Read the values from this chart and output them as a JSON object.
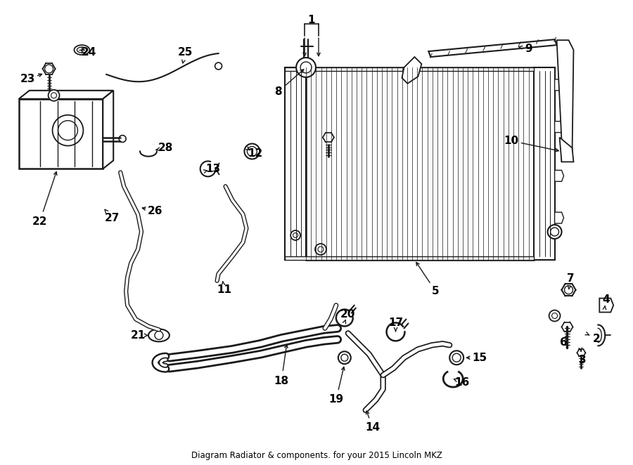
{
  "title": "Diagram Radiator & components. for your 2015 Lincoln MKZ",
  "bg_color": "#ffffff",
  "line_color": "#1a1a1a",
  "text_color": "#000000",
  "fig_width": 9.0,
  "fig_height": 6.62,
  "dpi": 100
}
